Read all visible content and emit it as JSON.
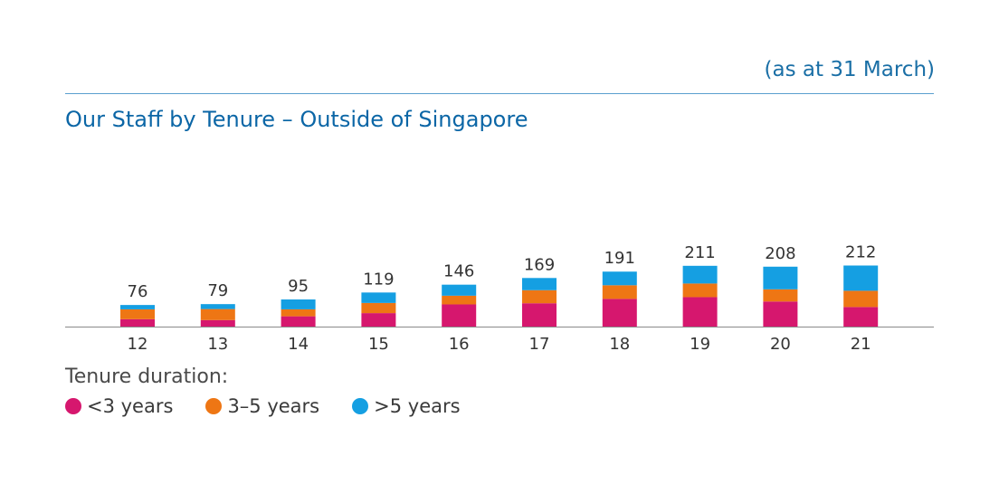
{
  "header": {
    "as_at": "(as at 31 March)",
    "title": "Our Staff by Tenure – Outside of Singapore"
  },
  "legend": {
    "title": "Tenure duration:",
    "items": [
      {
        "label": "<3 years",
        "color": "#d6176e"
      },
      {
        "label": "3–5 years",
        "color": "#ee7614"
      },
      {
        "label": ">5 years",
        "color": "#159fe2"
      }
    ]
  },
  "chart_data": {
    "type": "bar",
    "stacked": true,
    "categories": [
      "12",
      "13",
      "14",
      "15",
      "16",
      "17",
      "18",
      "19",
      "20",
      "21"
    ],
    "totals": [
      76,
      79,
      95,
      119,
      146,
      169,
      191,
      211,
      208,
      212
    ],
    "series": [
      {
        "name": "<3 years",
        "color": "#d6176e",
        "values": [
          27,
          24,
          37,
          48,
          78,
          82,
          97,
          103,
          88,
          69
        ]
      },
      {
        "name": "3–5 years",
        "color": "#ee7614",
        "values": [
          34,
          38,
          24,
          35,
          30,
          45,
          47,
          47,
          42,
          56
        ]
      },
      {
        "name": ">5 years",
        "color": "#159fe2",
        "values": [
          15,
          17,
          34,
          36,
          38,
          42,
          47,
          61,
          78,
          87
        ]
      }
    ],
    "ylim": [
      0,
      212
    ],
    "grid": false,
    "legend_position": "bottom-left"
  }
}
